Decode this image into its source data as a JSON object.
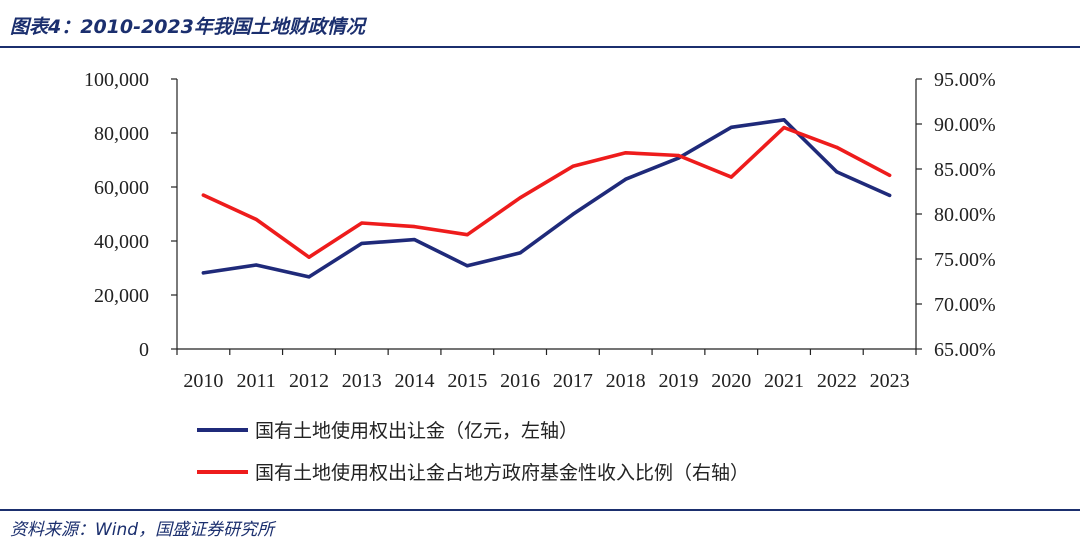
{
  "header": {
    "title": "图表4：2010-2023年我国土地财政情况"
  },
  "footer": {
    "source": "资料来源：Wind，国盛证券研究所"
  },
  "colors": {
    "accent": "#1b2f6e",
    "series_left": "#1f2a7a",
    "series_right": "#ee1c1c",
    "axis": "#222222"
  },
  "chart_data": {
    "type": "line",
    "categories": [
      "2010",
      "2011",
      "2012",
      "2013",
      "2014",
      "2015",
      "2016",
      "2017",
      "2018",
      "2019",
      "2020",
      "2021",
      "2022",
      "2023"
    ],
    "y_left": {
      "ylim": [
        0,
        100000
      ],
      "ticks": [
        0,
        20000,
        40000,
        60000,
        80000,
        100000
      ],
      "tick_labels": [
        "0",
        "20,000",
        "40,000",
        "60,000",
        "80,000",
        "100,000"
      ]
    },
    "y_right": {
      "ylim": [
        65,
        95
      ],
      "ticks": [
        65,
        70,
        75,
        80,
        85,
        90,
        95
      ],
      "tick_labels": [
        "65.00%",
        "70.00%",
        "75.00%",
        "80.00%",
        "85.00%",
        "90.00%",
        "95.00%"
      ]
    },
    "series": [
      {
        "name": "国有土地使用权出让金（亿元，左轴）",
        "axis": "left",
        "color": "#1f2a7a",
        "values": [
          28200,
          31100,
          26700,
          39100,
          40500,
          30800,
          35600,
          49900,
          62900,
          70700,
          82100,
          84900,
          65600,
          56900
        ]
      },
      {
        "name": "国有土地使用权出让金占地方政府基金性收入比例（右轴）",
        "axis": "right",
        "color": "#ee1c1c",
        "values": [
          82.1,
          79.4,
          75.2,
          79.0,
          78.6,
          77.7,
          81.8,
          85.3,
          86.8,
          86.5,
          84.1,
          89.6,
          87.4,
          84.3
        ]
      }
    ],
    "grid": false,
    "legend_position": "bottom"
  }
}
